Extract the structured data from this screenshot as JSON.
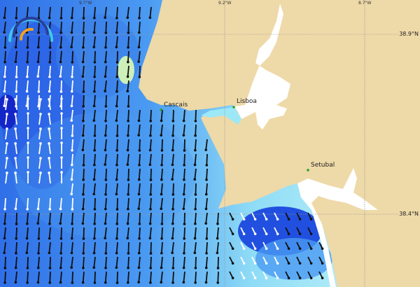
{
  "map": {
    "longitude_labels": [
      "9.7°W",
      "9.2°W",
      "8.7°W"
    ],
    "latitude_labels": [
      "38.9°N",
      "38.4°N"
    ],
    "places": [
      {
        "name": "Cascais"
      },
      {
        "name": "Lisboa"
      },
      {
        "name": "Setubal"
      }
    ],
    "colors": {
      "land": "#eed9a8",
      "deep_current": "#1a3fe0",
      "mid_current": "#3f8ff0",
      "weak_current": "#b8f4f8",
      "estuary": "#ffffff",
      "place_marker": "#2aa02a"
    },
    "logo_icon": "wave-arc-logo"
  }
}
